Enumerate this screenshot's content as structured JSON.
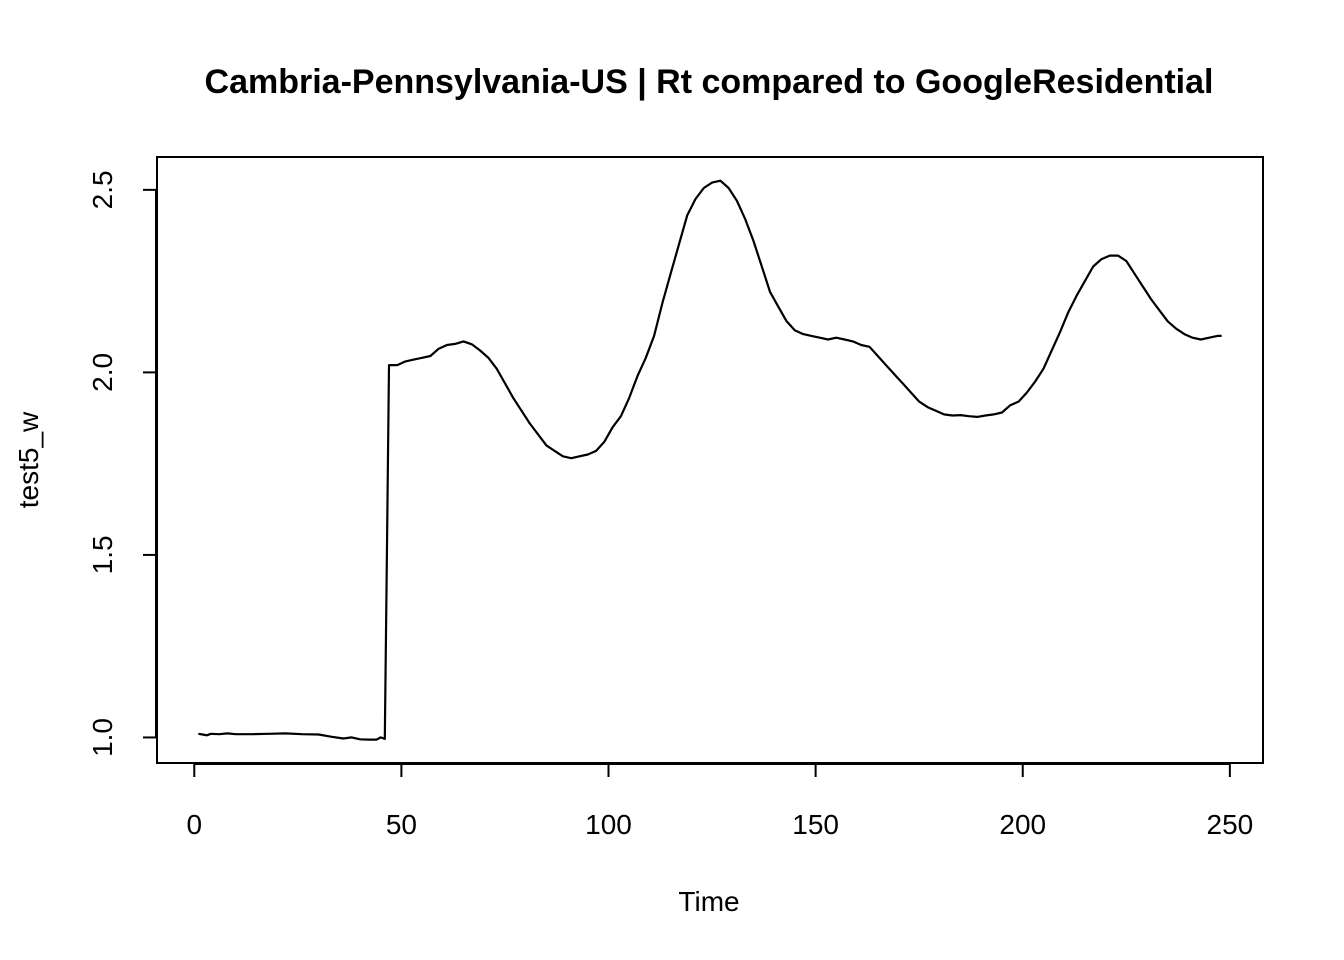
{
  "chart_data": {
    "type": "line",
    "title": "Cambria-Pennsylvania-US | Rt compared to GoogleResidential",
    "xlabel": "Time",
    "ylabel": "test5_w",
    "xlim": [
      -9,
      258
    ],
    "ylim": [
      0.93,
      2.59
    ],
    "x_ticks": [
      0,
      50,
      100,
      150,
      200,
      250
    ],
    "y_ticks": [
      1.0,
      1.5,
      2.0,
      2.5
    ],
    "x_tick_labels": [
      "0",
      "50",
      "100",
      "150",
      "200",
      "250"
    ],
    "y_tick_labels": [
      "1.0",
      "1.5",
      "2.0",
      "2.5"
    ],
    "grid": false,
    "line_color": "#000000",
    "series": [
      {
        "points": [
          [
            1,
            1.01
          ],
          [
            2,
            1.008
          ],
          [
            3,
            1.006
          ],
          [
            4,
            1.01
          ],
          [
            6,
            1.009
          ],
          [
            8,
            1.011
          ],
          [
            10,
            1.009
          ],
          [
            14,
            1.009
          ],
          [
            18,
            1.01
          ],
          [
            22,
            1.011
          ],
          [
            26,
            1.009
          ],
          [
            30,
            1.008
          ],
          [
            33,
            1.002
          ],
          [
            36,
            0.997
          ],
          [
            38,
            1.0
          ],
          [
            40,
            0.995
          ],
          [
            42,
            0.994
          ],
          [
            44,
            0.994
          ],
          [
            45,
            1.0
          ],
          [
            46,
            0.996
          ],
          [
            46.5,
            1.5
          ],
          [
            47,
            2.02
          ],
          [
            49,
            2.02
          ],
          [
            51,
            2.03
          ],
          [
            53,
            2.035
          ],
          [
            55,
            2.04
          ],
          [
            57,
            2.045
          ],
          [
            59,
            2.065
          ],
          [
            61,
            2.075
          ],
          [
            63,
            2.078
          ],
          [
            65,
            2.085
          ],
          [
            67,
            2.077
          ],
          [
            69,
            2.06
          ],
          [
            71,
            2.04
          ],
          [
            73,
            2.01
          ],
          [
            75,
            1.97
          ],
          [
            77,
            1.93
          ],
          [
            79,
            1.895
          ],
          [
            81,
            1.86
          ],
          [
            83,
            1.83
          ],
          [
            85,
            1.8
          ],
          [
            87,
            1.785
          ],
          [
            89,
            1.77
          ],
          [
            91,
            1.765
          ],
          [
            93,
            1.77
          ],
          [
            95,
            1.775
          ],
          [
            97,
            1.785
          ],
          [
            99,
            1.81
          ],
          [
            101,
            1.85
          ],
          [
            103,
            1.88
          ],
          [
            105,
            1.93
          ],
          [
            107,
            1.99
          ],
          [
            109,
            2.04
          ],
          [
            111,
            2.1
          ],
          [
            113,
            2.19
          ],
          [
            115,
            2.27
          ],
          [
            117,
            2.35
          ],
          [
            119,
            2.43
          ],
          [
            121,
            2.475
          ],
          [
            123,
            2.505
          ],
          [
            125,
            2.52
          ],
          [
            127,
            2.525
          ],
          [
            129,
            2.505
          ],
          [
            131,
            2.47
          ],
          [
            133,
            2.42
          ],
          [
            135,
            2.36
          ],
          [
            137,
            2.29
          ],
          [
            139,
            2.22
          ],
          [
            141,
            2.18
          ],
          [
            143,
            2.14
          ],
          [
            145,
            2.115
          ],
          [
            147,
            2.105
          ],
          [
            149,
            2.1
          ],
          [
            151,
            2.095
          ],
          [
            153,
            2.09
          ],
          [
            155,
            2.095
          ],
          [
            157,
            2.09
          ],
          [
            159,
            2.085
          ],
          [
            161,
            2.075
          ],
          [
            163,
            2.07
          ],
          [
            165,
            2.045
          ],
          [
            167,
            2.02
          ],
          [
            169,
            1.995
          ],
          [
            171,
            1.97
          ],
          [
            173,
            1.945
          ],
          [
            175,
            1.92
          ],
          [
            177,
            1.905
          ],
          [
            179,
            1.895
          ],
          [
            181,
            1.885
          ],
          [
            183,
            1.882
          ],
          [
            185,
            1.883
          ],
          [
            187,
            1.88
          ],
          [
            189,
            1.878
          ],
          [
            191,
            1.882
          ],
          [
            193,
            1.885
          ],
          [
            195,
            1.89
          ],
          [
            197,
            1.91
          ],
          [
            199,
            1.92
          ],
          [
            201,
            1.945
          ],
          [
            203,
            1.975
          ],
          [
            205,
            2.01
          ],
          [
            207,
            2.06
          ],
          [
            209,
            2.11
          ],
          [
            211,
            2.165
          ],
          [
            213,
            2.21
          ],
          [
            215,
            2.25
          ],
          [
            217,
            2.29
          ],
          [
            219,
            2.31
          ],
          [
            221,
            2.32
          ],
          [
            223,
            2.32
          ],
          [
            225,
            2.305
          ],
          [
            227,
            2.27
          ],
          [
            229,
            2.235
          ],
          [
            231,
            2.2
          ],
          [
            233,
            2.17
          ],
          [
            235,
            2.14
          ],
          [
            237,
            2.12
          ],
          [
            239,
            2.105
          ],
          [
            241,
            2.095
          ],
          [
            243,
            2.09
          ],
          [
            245,
            2.095
          ],
          [
            247,
            2.1
          ],
          [
            248,
            2.1
          ]
        ]
      }
    ]
  }
}
